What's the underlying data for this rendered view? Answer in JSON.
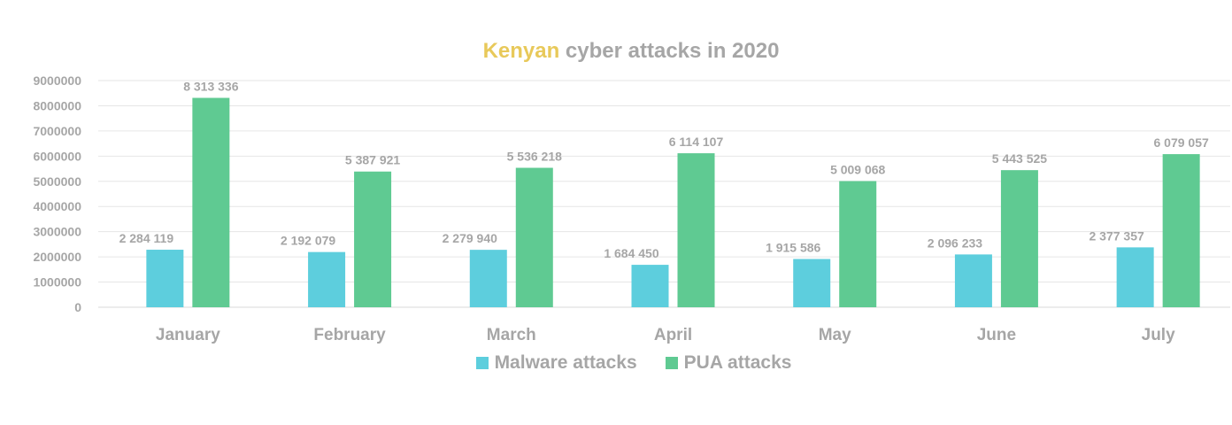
{
  "colors": {
    "malware": "#5dcedd",
    "pua": "#5fca92",
    "title_accent": "#e8c95a",
    "text": "#a6a6a6",
    "grid": "#e6e6e6"
  },
  "chart_data": {
    "type": "bar",
    "title_accent": "Kenyan",
    "title_rest": " cyber attacks in 2020",
    "categories": [
      "January",
      "February",
      "March",
      "April",
      "May",
      "June",
      "July"
    ],
    "series": [
      {
        "name": "Malware attacks",
        "values": [
          2284119,
          2192079,
          2279940,
          1684450,
          1915586,
          2096233,
          2377357
        ],
        "labels": [
          "2 284 119",
          "2 192 079",
          "2 279 940",
          "1 684 450",
          "1 915 586",
          "2 096 233",
          "2 377 357"
        ]
      },
      {
        "name": "PUA attacks",
        "values": [
          8313336,
          5387921,
          5536218,
          6114107,
          5009068,
          5443525,
          6079057
        ],
        "labels": [
          "8 313 336",
          "5 387 921",
          "5 536 218",
          "6 114 107",
          "5 009 068",
          "5 443 525",
          "6 079 057"
        ]
      }
    ],
    "yticks": [
      "0",
      "1000000",
      "2000000",
      "3000000",
      "4000000",
      "5000000",
      "6000000",
      "7000000",
      "8000000",
      "9000000"
    ],
    "ylim": [
      0,
      9000000
    ],
    "grid": true,
    "legend_position": "bottom"
  }
}
